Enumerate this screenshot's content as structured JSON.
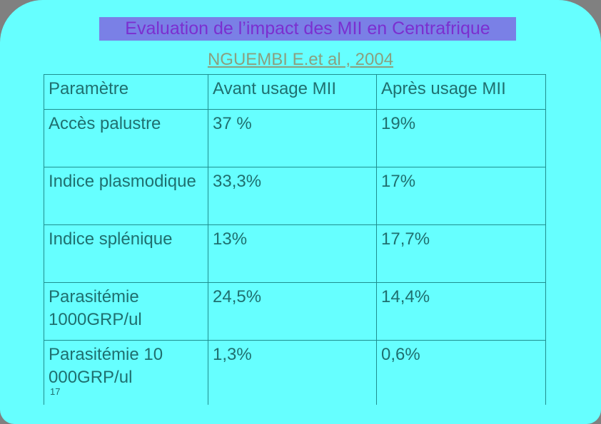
{
  "title": "Evaluation de l’impact des MII en Centrafrique",
  "subtitle": "NGUEMBI E.et al , 2004",
  "table": {
    "headers": [
      "Paramètre",
      "Avant usage MII",
      "Après usage MII"
    ],
    "rows": [
      [
        "Accès palustre",
        "37 %",
        "19%"
      ],
      [
        "Indice plasmodique",
        "33,3%",
        "17%"
      ],
      [
        "Indice splénique",
        "13%",
        "17,7%"
      ],
      [
        "Parasitémie 1000GRP/ul",
        "24,5%",
        "14,4%"
      ],
      [
        "Parasitémie 10 000GRP/ul",
        "1,3%",
        "0,6%"
      ]
    ]
  },
  "page_number": "17"
}
